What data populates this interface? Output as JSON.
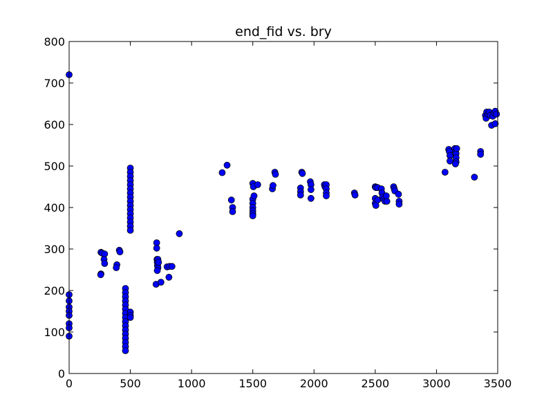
{
  "chart_data": {
    "type": "scatter",
    "title": "end_fid vs. bry",
    "xlabel": "",
    "ylabel": "",
    "xlim": [
      0,
      3500
    ],
    "ylim": [
      0,
      800
    ],
    "xticks": [
      0,
      500,
      1000,
      1500,
      2000,
      2500,
      3000,
      3500
    ],
    "yticks": [
      0,
      100,
      200,
      300,
      400,
      500,
      600,
      700,
      800
    ],
    "grid": false,
    "marker_color": "#0000ff",
    "marker_edge_color": "#000000",
    "series": [
      {
        "points": [
          [
            0,
            720
          ],
          [
            0,
            190
          ],
          [
            0,
            175
          ],
          [
            0,
            160
          ],
          [
            0,
            150
          ],
          [
            0,
            140
          ],
          [
            0,
            120
          ],
          [
            0,
            110
          ],
          [
            0,
            90
          ],
          [
            260,
            292
          ],
          [
            270,
            290
          ],
          [
            290,
            288
          ],
          [
            285,
            275
          ],
          [
            290,
            265
          ],
          [
            260,
            240
          ],
          [
            258,
            238
          ],
          [
            390,
            262
          ],
          [
            385,
            255
          ],
          [
            410,
            297
          ],
          [
            415,
            293
          ],
          [
            460,
            205
          ],
          [
            460,
            195
          ],
          [
            460,
            185
          ],
          [
            460,
            175
          ],
          [
            460,
            165
          ],
          [
            460,
            155
          ],
          [
            460,
            145
          ],
          [
            460,
            135
          ],
          [
            460,
            125
          ],
          [
            460,
            115
          ],
          [
            460,
            105
          ],
          [
            460,
            95
          ],
          [
            460,
            85
          ],
          [
            460,
            75
          ],
          [
            460,
            65
          ],
          [
            460,
            55
          ],
          [
            500,
            148
          ],
          [
            500,
            140
          ],
          [
            500,
            135
          ],
          [
            500,
            495
          ],
          [
            500,
            485
          ],
          [
            500,
            475
          ],
          [
            500,
            465
          ],
          [
            500,
            455
          ],
          [
            500,
            445
          ],
          [
            500,
            435
          ],
          [
            500,
            425
          ],
          [
            500,
            415
          ],
          [
            500,
            405
          ],
          [
            500,
            395
          ],
          [
            500,
            385
          ],
          [
            500,
            375
          ],
          [
            500,
            365
          ],
          [
            500,
            355
          ],
          [
            500,
            345
          ],
          [
            715,
            315
          ],
          [
            715,
            302
          ],
          [
            718,
            275
          ],
          [
            720,
            268
          ],
          [
            722,
            260
          ],
          [
            725,
            255
          ],
          [
            720,
            248
          ],
          [
            725,
            275
          ],
          [
            730,
            268
          ],
          [
            710,
            215
          ],
          [
            750,
            220
          ],
          [
            800,
            257
          ],
          [
            820,
            258
          ],
          [
            840,
            258
          ],
          [
            815,
            232
          ],
          [
            900,
            337
          ],
          [
            1250,
            484
          ],
          [
            1290,
            502
          ],
          [
            1325,
            418
          ],
          [
            1335,
            400
          ],
          [
            1335,
            390
          ],
          [
            1500,
            458
          ],
          [
            1505,
            450
          ],
          [
            1500,
            420
          ],
          [
            1500,
            410
          ],
          [
            1500,
            400
          ],
          [
            1500,
            392
          ],
          [
            1500,
            385
          ],
          [
            1500,
            380
          ],
          [
            1510,
            428
          ],
          [
            1540,
            455
          ],
          [
            1660,
            445
          ],
          [
            1665,
            453
          ],
          [
            1680,
            485
          ],
          [
            1685,
            480
          ],
          [
            1890,
            447
          ],
          [
            1890,
            438
          ],
          [
            1890,
            430
          ],
          [
            1900,
            485
          ],
          [
            1905,
            482
          ],
          [
            1970,
            462
          ],
          [
            1975,
            455
          ],
          [
            1975,
            443
          ],
          [
            1975,
            422
          ],
          [
            2085,
            455
          ],
          [
            2090,
            450
          ],
          [
            2100,
            455
          ],
          [
            2100,
            445
          ],
          [
            2100,
            435
          ],
          [
            2100,
            428
          ],
          [
            2330,
            435
          ],
          [
            2335,
            430
          ],
          [
            2500,
            450
          ],
          [
            2505,
            448
          ],
          [
            2520,
            448
          ],
          [
            2500,
            422
          ],
          [
            2500,
            410
          ],
          [
            2505,
            405
          ],
          [
            2520,
            418
          ],
          [
            2550,
            445
          ],
          [
            2555,
            435
          ],
          [
            2560,
            425
          ],
          [
            2570,
            420
          ],
          [
            2580,
            415
          ],
          [
            2595,
            415
          ],
          [
            2590,
            428
          ],
          [
            2650,
            450
          ],
          [
            2655,
            445
          ],
          [
            2660,
            440
          ],
          [
            2690,
            432
          ],
          [
            2695,
            415
          ],
          [
            2695,
            408
          ],
          [
            3070,
            485
          ],
          [
            3100,
            540
          ],
          [
            3105,
            535
          ],
          [
            3110,
            525
          ],
          [
            3110,
            512
          ],
          [
            3150,
            542
          ],
          [
            3155,
            535
          ],
          [
            3160,
            530
          ],
          [
            3160,
            520
          ],
          [
            3160,
            510
          ],
          [
            3155,
            505
          ],
          [
            3165,
            542
          ],
          [
            3310,
            473
          ],
          [
            3360,
            535
          ],
          [
            3360,
            528
          ],
          [
            3400,
            622
          ],
          [
            3405,
            615
          ],
          [
            3410,
            630
          ],
          [
            3420,
            625
          ],
          [
            3430,
            630
          ],
          [
            3440,
            622
          ],
          [
            3450,
            598
          ],
          [
            3460,
            620
          ],
          [
            3470,
            628
          ],
          [
            3480,
            632
          ],
          [
            3480,
            602
          ],
          [
            3490,
            625
          ]
        ]
      }
    ]
  }
}
